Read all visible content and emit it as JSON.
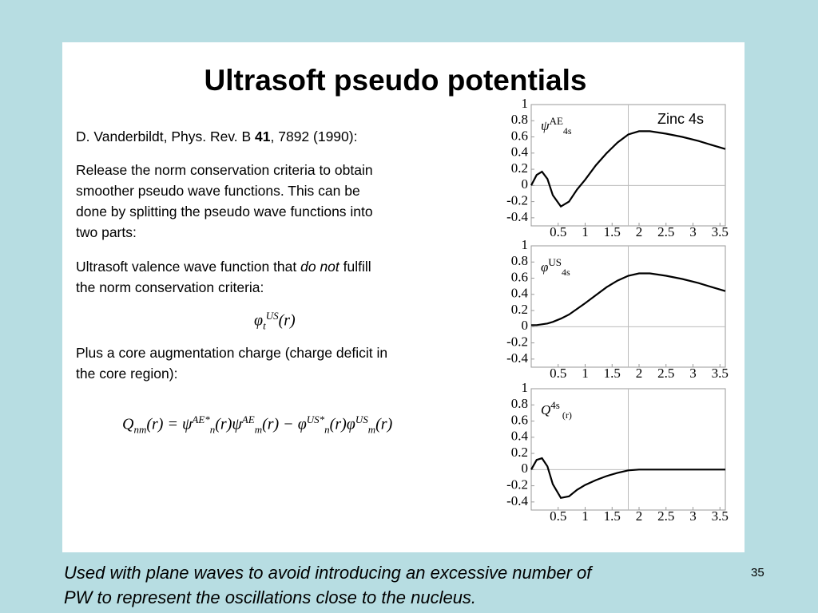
{
  "slide": {
    "title": "Ultrasoft pseudo potentials",
    "reference": [
      "D. Vanderbildt, Phys. Rev. B ",
      "41",
      ", 7892 (1990):"
    ],
    "paragraph_1": [
      "Release the norm conservation criteria to obtain",
      "smoother pseudo wave functions. This can be",
      "done by splitting the pseudo wave functions into",
      "two parts:"
    ],
    "paragraph_2": [
      "Ultrasoft valence wave function that ",
      "do not",
      " fulfill",
      "the norm conservation criteria:"
    ],
    "formula_1": [
      "φ",
      "t",
      "US",
      "(r)"
    ],
    "paragraph_3": [
      "Plus a core augmentation charge (charge deficit in",
      "the core region):"
    ],
    "formula_2": [
      "Q",
      "nm",
      "(r) = ",
      "ψ",
      "AE",
      "*",
      "n",
      "(r)",
      "ψ",
      "AE",
      "m",
      "(r) − ",
      "φ",
      "US",
      "*",
      "n",
      "(r)",
      "φ",
      "US",
      "m",
      "(r)"
    ],
    "footer": [
      "Used with plane waves to avoid introducing an excessive number of",
      "PW to represent the oscillations close to the nucleus."
    ],
    "page_number": "35"
  },
  "chart_data": [
    {
      "type": "line",
      "title": "Zinc 4s",
      "annotation": [
        "ψ",
        "AE",
        "4s"
      ],
      "x": [
        0,
        0.1,
        0.2,
        0.3,
        0.4,
        0.55,
        0.7,
        0.85,
        1,
        1.2,
        1.4,
        1.6,
        1.8,
        2,
        2.2,
        2.5,
        2.8,
        3.1,
        3.4,
        3.6
      ],
      "series": [
        {
          "color": "#000000",
          "values": [
            0,
            0.13,
            0.17,
            0.08,
            -0.12,
            -0.26,
            -0.2,
            -0.05,
            0.07,
            0.25,
            0.4,
            0.53,
            0.63,
            0.67,
            0.67,
            0.64,
            0.6,
            0.55,
            0.49,
            0.45
          ]
        }
      ],
      "xlim": [
        0,
        3.6
      ],
      "ylim": [
        -0.5,
        1
      ],
      "reference_x": 1.8,
      "xticks": [
        0.5,
        1,
        1.5,
        2,
        2.5,
        3,
        3.5
      ],
      "yticks": [
        -0.4,
        -0.2,
        0,
        0.2,
        0.4,
        0.6,
        0.8,
        1
      ]
    },
    {
      "type": "line",
      "annotation": [
        "φ",
        "US",
        "4s"
      ],
      "x": [
        0,
        0.1,
        0.2,
        0.3,
        0.4,
        0.55,
        0.7,
        0.85,
        1,
        1.2,
        1.4,
        1.6,
        1.8,
        2,
        2.2,
        2.5,
        2.8,
        3.1,
        3.4,
        3.6
      ],
      "series": [
        {
          "color": "#000000",
          "values": [
            0.02,
            0.02,
            0.03,
            0.04,
            0.06,
            0.1,
            0.15,
            0.22,
            0.29,
            0.39,
            0.49,
            0.57,
            0.63,
            0.66,
            0.66,
            0.63,
            0.59,
            0.54,
            0.48,
            0.44
          ]
        }
      ],
      "xlim": [
        0,
        3.6
      ],
      "ylim": [
        -0.5,
        1
      ],
      "reference_x": 1.8,
      "xticks": [
        0.5,
        1,
        1.5,
        2,
        2.5,
        3,
        3.5
      ],
      "yticks": [
        -0.4,
        -0.2,
        0,
        0.2,
        0.4,
        0.6,
        0.8,
        1
      ]
    },
    {
      "type": "line",
      "annotation": [
        "Q",
        "4s",
        " (r)"
      ],
      "x": [
        0,
        0.1,
        0.2,
        0.3,
        0.4,
        0.55,
        0.7,
        0.85,
        1,
        1.2,
        1.4,
        1.6,
        1.8,
        2,
        2.2,
        2.5,
        2.8,
        3.1,
        3.4,
        3.6
      ],
      "series": [
        {
          "color": "#000000",
          "values": [
            0,
            0.12,
            0.14,
            0.04,
            -0.18,
            -0.35,
            -0.33,
            -0.25,
            -0.19,
            -0.13,
            -0.08,
            -0.04,
            -0.01,
            0,
            0,
            0,
            0,
            0,
            0,
            0
          ]
        }
      ],
      "xlim": [
        0,
        3.6
      ],
      "ylim": [
        -0.5,
        1
      ],
      "reference_x": 1.8,
      "xticks": [
        0.5,
        1,
        1.5,
        2,
        2.5,
        3,
        3.5
      ],
      "yticks": [
        -0.4,
        -0.2,
        0,
        0.2,
        0.4,
        0.6,
        0.8,
        1
      ]
    }
  ]
}
